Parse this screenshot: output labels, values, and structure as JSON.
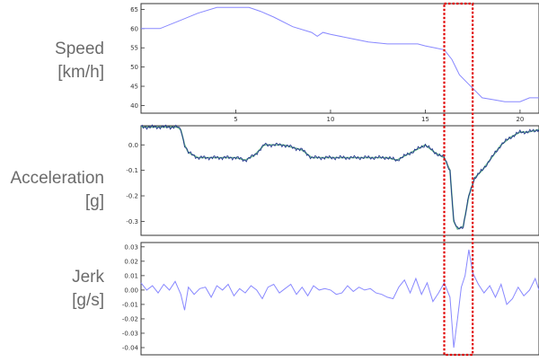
{
  "chart_data": [
    {
      "type": "line",
      "row_label": [
        "Speed",
        "[km/h]"
      ],
      "x_ticks": [
        5,
        10,
        15,
        20
      ],
      "y_ticks": [
        40,
        45,
        50,
        55,
        60,
        65
      ],
      "ylim": [
        38,
        66.5
      ],
      "color": "#8888ff",
      "series": [
        {
          "x": [
            0,
            1.0,
            2.0,
            3.0,
            4.0,
            5.0,
            5.7,
            6.3,
            7.0,
            8.0,
            9.0,
            9.3,
            9.6,
            10.0,
            11.0,
            12.0,
            13.0,
            14.0,
            14.6,
            15.0,
            15.5,
            16.0,
            16.4,
            16.8,
            17.2,
            17.6,
            18.0,
            18.6,
            19.2,
            20.0,
            20.5,
            21.0
          ],
          "y": [
            60,
            60,
            62,
            64,
            65.5,
            65.5,
            65.5,
            64.5,
            63,
            60.5,
            59,
            58,
            59,
            58.5,
            57.5,
            56.5,
            56,
            56,
            56,
            55.5,
            55,
            54.5,
            52,
            48,
            46,
            44,
            42,
            41.5,
            41,
            41,
            42,
            42
          ]
        }
      ]
    },
    {
      "type": "line",
      "row_label": [
        "Acceleration",
        "[g]"
      ],
      "y_ticks": [
        0.0,
        -0.1,
        -0.2,
        -0.3
      ],
      "y_tick_labels": [
        "0.0",
        "-0.1",
        "-0.2",
        "-0.3"
      ],
      "ylim": [
        -0.355,
        0.075
      ],
      "colors": {
        "raw": "#1c2c8c",
        "smoothed": "#6ab58c"
      },
      "series": [
        {
          "name": "",
          "x": [
            0,
            1.9,
            2.1,
            2.3,
            2.5,
            3.0,
            4.0,
            5.0,
            5.5,
            6.0,
            6.5,
            7.0,
            7.5,
            8.0,
            8.5,
            9.0,
            9.5,
            10.0,
            10.5,
            11.0,
            11.5,
            12.0,
            12.5,
            13.0,
            13.5,
            14.0,
            14.5,
            15.0,
            15.5,
            16.0,
            16.3,
            16.5,
            16.7,
            17.0,
            17.3,
            17.6,
            18.0,
            18.5,
            19.0,
            19.5,
            20.0,
            20.4,
            21.0
          ],
          "y": [
            0.07,
            0.07,
            0.06,
            0.0,
            -0.03,
            -0.05,
            -0.05,
            -0.05,
            -0.06,
            -0.04,
            0.0,
            0.0,
            0.0,
            -0.01,
            -0.02,
            -0.05,
            -0.05,
            -0.05,
            -0.05,
            -0.05,
            -0.05,
            -0.05,
            -0.05,
            -0.05,
            -0.06,
            -0.04,
            -0.02,
            0.0,
            -0.03,
            -0.05,
            -0.1,
            -0.3,
            -0.33,
            -0.32,
            -0.2,
            -0.13,
            -0.1,
            -0.05,
            0.0,
            0.03,
            0.05,
            0.05,
            0.06
          ]
        }
      ]
    },
    {
      "type": "line",
      "row_label": [
        "Jerk",
        "[g/s]"
      ],
      "y_ticks": [
        0.03,
        0.02,
        0.01,
        0.0,
        -0.01,
        -0.02,
        -0.03,
        -0.04
      ],
      "y_tick_labels": [
        "0.03",
        "0.02",
        "0.01",
        "0.00",
        "-0.01",
        "-0.02",
        "-0.03",
        "-0.04"
      ],
      "ylim": [
        -0.045,
        0.033
      ],
      "color": "#8888ff",
      "series": [
        {
          "x": [
            0,
            0.3,
            0.6,
            0.9,
            1.2,
            1.5,
            1.8,
            2.1,
            2.3,
            2.5,
            2.8,
            3.1,
            3.4,
            3.7,
            4.0,
            4.3,
            4.6,
            4.9,
            5.2,
            5.5,
            5.8,
            6.1,
            6.4,
            6.7,
            7.0,
            7.3,
            7.6,
            7.9,
            8.2,
            8.5,
            8.8,
            9.1,
            9.4,
            9.7,
            10.0,
            10.3,
            10.6,
            10.9,
            11.2,
            11.5,
            11.8,
            12.1,
            12.4,
            12.7,
            13.0,
            13.3,
            13.6,
            13.9,
            14.2,
            14.5,
            14.8,
            15.1,
            15.4,
            15.7,
            16.0,
            16.3,
            16.5,
            16.7,
            16.9,
            17.1,
            17.3,
            17.5,
            17.8,
            18.1,
            18.4,
            18.7,
            19.0,
            19.3,
            19.6,
            19.9,
            20.2,
            20.5,
            20.8,
            21.0
          ],
          "y": [
            0.005,
            0.0,
            0.003,
            -0.002,
            0.004,
            0.0,
            0.006,
            -0.003,
            -0.014,
            0.002,
            -0.003,
            0.001,
            0.002,
            -0.005,
            0.003,
            0.0,
            0.004,
            -0.004,
            0.001,
            -0.002,
            0.003,
            0.0,
            -0.006,
            0.002,
            0.004,
            -0.002,
            0.001,
            0.004,
            -0.003,
            0.002,
            -0.004,
            0.003,
            0.0,
            0.001,
            0.0,
            -0.003,
            -0.002,
            0.003,
            -0.001,
            0.002,
            0.0,
            0.001,
            -0.002,
            -0.003,
            -0.005,
            -0.006,
            0.002,
            0.007,
            -0.002,
            0.008,
            -0.003,
            0.005,
            -0.008,
            -0.002,
            0.005,
            -0.005,
            -0.04,
            -0.02,
            0.002,
            0.01,
            0.028,
            0.012,
            0.004,
            -0.002,
            0.003,
            -0.005,
            0.004,
            -0.01,
            -0.006,
            0.002,
            -0.004,
            0.0,
            0.008,
            0.0
          ]
        }
      ]
    }
  ],
  "highlight_x_range": [
    16.0,
    17.5
  ],
  "highlight_color": "#e00000",
  "axis_color": "#333333"
}
